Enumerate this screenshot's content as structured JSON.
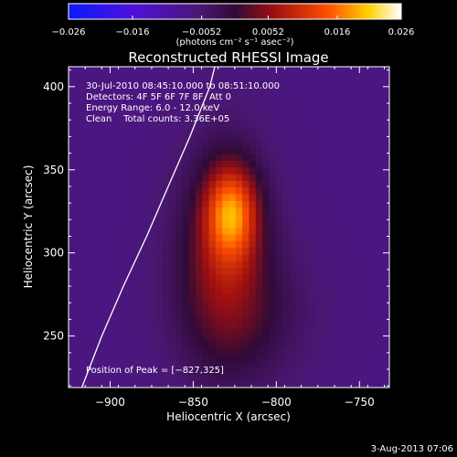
{
  "chart_data": {
    "type": "heatmap",
    "title": "Reconstructed RHESSI Image",
    "xlabel": "Heliocentric X (arcsec)",
    "ylabel": "Heliocentric Y (arcsec)",
    "xlim": [
      -925,
      -732
    ],
    "ylim": [
      219,
      412
    ],
    "x_ticks": [
      -900,
      -850,
      -800,
      -750
    ],
    "x_tick_labels": [
      "−900",
      "−850",
      "−800",
      "−750"
    ],
    "y_ticks": [
      250,
      300,
      350,
      400
    ],
    "y_tick_labels": [
      "250",
      "300",
      "350",
      "400"
    ],
    "colorbar": {
      "range": [
        -0.026,
        0.026
      ],
      "ticks": [
        -0.026,
        -0.016,
        -0.0052,
        0.0052,
        0.016,
        0.026
      ],
      "tick_labels": [
        "−0.026",
        "−0.016",
        "−0.0052",
        "0.0052",
        "0.016",
        "0.026"
      ],
      "unit_label": "(photons cm⁻² s⁻¹ asec⁻²)"
    },
    "annotations": [
      "30-Jul-2010 08:45:10.000 to 08:51:10.000",
      "Detectors: 4F 5F 6F 7F 8F, Att 0",
      "Energy Range: 6.0 - 12.0 keV",
      "Clean    Total counts: 3.36E+05"
    ],
    "peak_text": "Position of Peak = [−827,325]",
    "peak": {
      "x": -827,
      "y": 325,
      "value": 0.026
    },
    "sources": [
      {
        "x": -827,
        "y": 325,
        "sx": 11,
        "sy": 20,
        "amp": 0.0175
      },
      {
        "x": -832,
        "y": 300,
        "sx": 20,
        "sy": 45,
        "amp": 0.0105
      },
      {
        "x": -818,
        "y": 262,
        "sx": 28,
        "sy": 30,
        "amp": 0.0045
      }
    ],
    "background": -0.0068,
    "limb": [
      [
        -917,
        219
      ],
      [
        -905,
        250
      ],
      [
        -892,
        280
      ],
      [
        -878,
        310
      ],
      [
        -865,
        340
      ],
      [
        -852,
        370
      ],
      [
        -840,
        400
      ],
      [
        -837,
        412
      ]
    ]
  },
  "footer_date": "3-Aug-2013 07:06"
}
